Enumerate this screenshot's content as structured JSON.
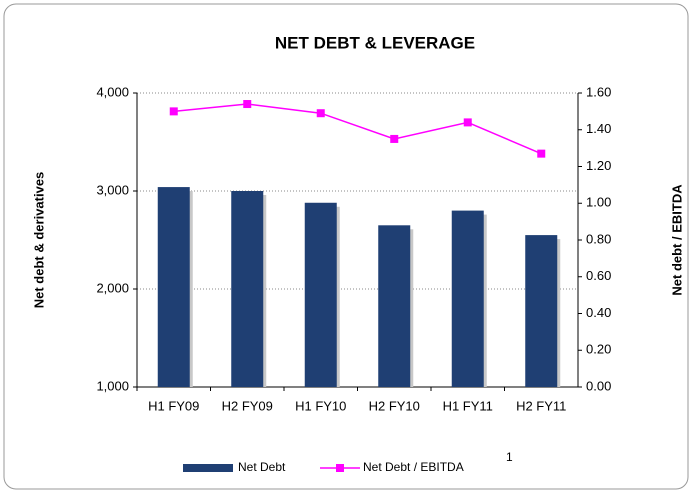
{
  "chart_data": {
    "type": "bar_line",
    "title": "NET DEBT & LEVERAGE",
    "categories": [
      "H1 FY09",
      "H2 FY09",
      "H1 FY10",
      "H2 FY10",
      "H1 FY11",
      "H2 FY11"
    ],
    "series": [
      {
        "name": "Net Debt",
        "color": "#1f3f73",
        "type": "bar",
        "values": [
          3040,
          3000,
          2880,
          2650,
          2800,
          2550
        ]
      },
      {
        "name": "Net Debt / EBITDA",
        "color": "#ff00ff",
        "type": "line",
        "axis": "y2",
        "values": [
          1.5,
          1.54,
          1.49,
          1.35,
          1.44,
          1.27
        ]
      }
    ],
    "ylabel": "Net debt & derivatives",
    "y2label": "Net debt / EBITDA",
    "ylim": [
      1000,
      4000
    ],
    "yticks": [
      {
        "value": 1000,
        "label": "1,000"
      },
      {
        "value": 2000,
        "label": "2,000"
      },
      {
        "value": 3000,
        "label": "3,000"
      },
      {
        "value": 4000,
        "label": "4,000"
      }
    ],
    "y2lim": [
      0,
      1.6
    ],
    "y2ticks": [
      {
        "value": 0,
        "label": "0.00"
      },
      {
        "value": 0.2,
        "label": "0.20"
      },
      {
        "value": 0.4,
        "label": "0.40"
      },
      {
        "value": 0.6,
        "label": "0.60"
      },
      {
        "value": 0.8,
        "label": "0.80"
      },
      {
        "value": 1.0,
        "label": "1.00"
      },
      {
        "value": 1.2,
        "label": "1.20"
      },
      {
        "value": 1.4,
        "label": "1.40"
      },
      {
        "value": 1.6,
        "label": "1.60"
      }
    ],
    "legend_note": "1",
    "grid": true
  }
}
